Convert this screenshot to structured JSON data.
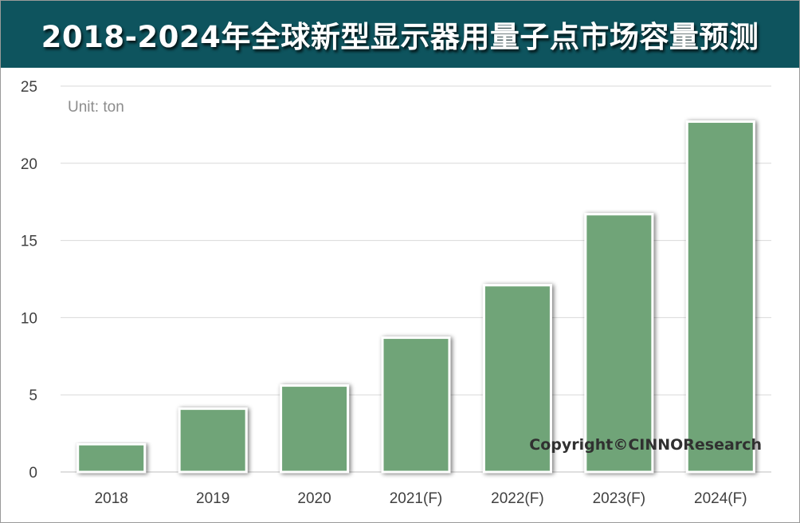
{
  "title": "2018-2024年全球新型显示器用量子点市场容量预测",
  "unit_label": "Unit: ton",
  "copyright": "Copyright©CINNOResearch",
  "colors": {
    "title_bg": "#0e545e",
    "bar_fill": "#70a478",
    "bar_stroke": "#ffffff"
  },
  "chart_data": {
    "type": "bar",
    "title": "2018-2024年全球新型显示器用量子点市场容量预测",
    "xlabel": "",
    "ylabel": "",
    "unit": "Unit: ton",
    "categories": [
      "2018",
      "2019",
      "2020",
      "2021(F)",
      "2022(F)",
      "2023(F)",
      "2024(F)"
    ],
    "values": [
      1.8,
      4.1,
      5.6,
      8.7,
      12.1,
      16.7,
      22.7
    ],
    "ylim": [
      0,
      25
    ],
    "yticks": [
      0,
      5,
      10,
      15,
      20,
      25
    ],
    "grid": true,
    "legend": "none"
  }
}
